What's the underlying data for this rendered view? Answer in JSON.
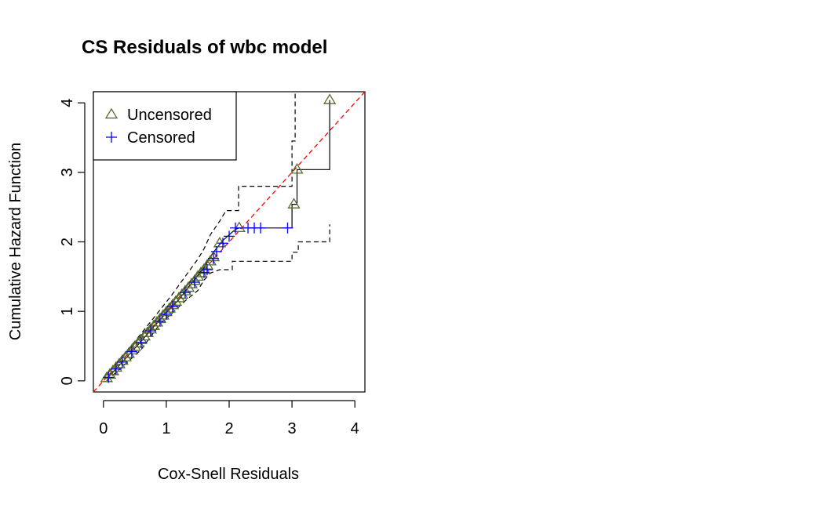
{
  "chart_data": {
    "type": "scatter",
    "title": "CS Residuals of wbc model",
    "xlabel": "Cox-Snell Residuals",
    "ylabel": "Cumulative Hazard Function",
    "xlim": [
      -0.16,
      4.16
    ],
    "ylim": [
      -0.16,
      4.16
    ],
    "x_ticks": [
      0,
      1,
      2,
      3,
      4
    ],
    "y_ticks": [
      0,
      1,
      2,
      3,
      4
    ],
    "grid": false,
    "legend_position": "top-left",
    "legend": [
      {
        "label": "Uncensored",
        "marker": "triangle",
        "color": "#556B2F"
      },
      {
        "label": "Censored",
        "marker": "plus",
        "color": "#0000FF"
      }
    ],
    "reference_line": {
      "from": [
        -0.16,
        -0.16
      ],
      "to": [
        4.16,
        4.16
      ],
      "color": "#FF0000",
      "style": "dashed"
    },
    "step_curve": [
      [
        0.05,
        0.03
      ],
      [
        0.2,
        0.17
      ],
      [
        0.4,
        0.37
      ],
      [
        0.6,
        0.57
      ],
      [
        0.8,
        0.78
      ],
      [
        1.0,
        0.98
      ],
      [
        1.2,
        1.17
      ],
      [
        1.4,
        1.4
      ],
      [
        1.6,
        1.63
      ],
      [
        1.75,
        1.85
      ],
      [
        1.9,
        2.02
      ],
      [
        2.0,
        2.1
      ],
      [
        2.1,
        2.18
      ],
      [
        2.16,
        2.2
      ],
      [
        3.0,
        2.2
      ],
      [
        3.0,
        2.54
      ],
      [
        3.08,
        2.54
      ],
      [
        3.08,
        3.04
      ],
      [
        3.6,
        3.04
      ],
      [
        3.6,
        4.04
      ]
    ],
    "upper_band": [
      [
        0.05,
        0.1
      ],
      [
        0.3,
        0.35
      ],
      [
        0.6,
        0.68
      ],
      [
        0.9,
        1.02
      ],
      [
        1.1,
        1.25
      ],
      [
        1.3,
        1.5
      ],
      [
        1.5,
        1.75
      ],
      [
        1.6,
        1.9
      ],
      [
        1.7,
        2.1
      ],
      [
        1.85,
        2.3
      ],
      [
        1.95,
        2.45
      ],
      [
        2.15,
        2.45
      ],
      [
        2.15,
        2.8
      ],
      [
        3.0,
        2.8
      ],
      [
        3.0,
        3.45
      ],
      [
        3.05,
        3.45
      ],
      [
        3.05,
        4.16
      ]
    ],
    "lower_band": [
      [
        0.05,
        0.0
      ],
      [
        0.3,
        0.2
      ],
      [
        0.6,
        0.45
      ],
      [
        0.9,
        0.82
      ],
      [
        1.1,
        0.98
      ],
      [
        1.3,
        1.15
      ],
      [
        1.5,
        1.3
      ],
      [
        1.6,
        1.45
      ],
      [
        1.7,
        1.55
      ],
      [
        1.85,
        1.6
      ],
      [
        2.05,
        1.6
      ],
      [
        2.05,
        1.72
      ],
      [
        3.0,
        1.72
      ],
      [
        3.0,
        1.85
      ],
      [
        3.1,
        1.85
      ],
      [
        3.1,
        2.0
      ],
      [
        3.6,
        2.0
      ],
      [
        3.6,
        2.25
      ]
    ],
    "uncensored": {
      "x": [
        0.05,
        0.1,
        0.15,
        0.2,
        0.25,
        0.3,
        0.35,
        0.4,
        0.45,
        0.5,
        0.55,
        0.6,
        0.65,
        0.7,
        0.75,
        0.8,
        0.85,
        0.9,
        0.95,
        1.0,
        1.05,
        1.1,
        1.15,
        1.2,
        1.25,
        1.3,
        1.35,
        1.4,
        1.45,
        1.5,
        1.55,
        1.6,
        1.65,
        1.7,
        1.75,
        1.85,
        2.16,
        3.03,
        3.08,
        3.6
      ],
      "y": [
        0.04,
        0.09,
        0.14,
        0.19,
        0.24,
        0.29,
        0.34,
        0.39,
        0.44,
        0.49,
        0.54,
        0.59,
        0.64,
        0.69,
        0.74,
        0.79,
        0.84,
        0.89,
        0.94,
        0.99,
        1.04,
        1.09,
        1.14,
        1.19,
        1.24,
        1.29,
        1.34,
        1.39,
        1.44,
        1.5,
        1.55,
        1.6,
        1.66,
        1.72,
        1.78,
        1.98,
        2.2,
        2.54,
        3.04,
        4.04
      ]
    },
    "censored": {
      "x": [
        0.08,
        0.2,
        0.3,
        0.45,
        0.6,
        0.75,
        0.9,
        1.0,
        1.1,
        1.3,
        1.45,
        1.6,
        1.65,
        1.75,
        1.8,
        1.9,
        2.0,
        2.1,
        2.3,
        2.4,
        2.5,
        2.93
      ],
      "y": [
        0.05,
        0.17,
        0.27,
        0.42,
        0.55,
        0.72,
        0.86,
        0.96,
        1.07,
        1.27,
        1.42,
        1.56,
        1.6,
        1.76,
        1.86,
        1.98,
        2.08,
        2.2,
        2.2,
        2.2,
        2.2,
        2.2
      ]
    }
  }
}
